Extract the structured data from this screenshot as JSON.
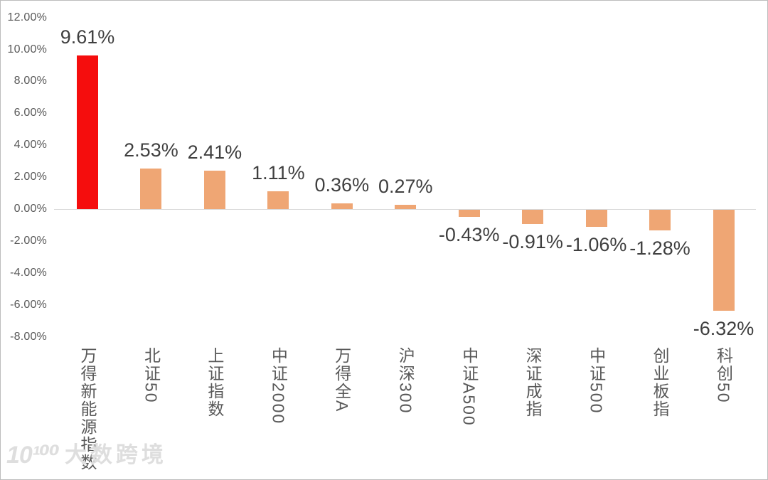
{
  "chart_data": {
    "type": "bar",
    "title": "",
    "xlabel": "",
    "ylabel": "",
    "categories": [
      "万得新能源指数",
      "北证50",
      "上证指数",
      "中证2000",
      "万得全A",
      "沪深300",
      "中证A500",
      "深证成指",
      "中证500",
      "创业板指",
      "科创50"
    ],
    "values": [
      9.61,
      2.53,
      2.41,
      1.11,
      0.36,
      0.27,
      -0.43,
      -0.91,
      -1.06,
      -1.28,
      -6.32
    ],
    "value_labels": [
      "9.61%",
      "2.53%",
      "2.41%",
      "1.11%",
      "0.36%",
      "0.27%",
      "-0.43%",
      "-0.91%",
      "-1.06%",
      "-1.28%",
      "-6.32%"
    ],
    "bar_colors": [
      "#f50d0d",
      "#efa674",
      "#efa674",
      "#efa674",
      "#efa674",
      "#efa674",
      "#efa674",
      "#efa674",
      "#efa674",
      "#efa674",
      "#efa674"
    ],
    "highlight_color": "#f50d0d",
    "default_color": "#efa674",
    "y_axis": {
      "tick_labels": [
        "12.00%",
        "10.00%",
        "8.00%",
        "6.00%",
        "4.00%",
        "2.00%",
        "0.00%",
        "-2.00%",
        "-4.00%",
        "-6.00%",
        "-8.00%"
      ],
      "tick_values": [
        12,
        10,
        8,
        6,
        4,
        2,
        0,
        -2,
        -4,
        -6,
        -8
      ],
      "ylim": [
        -8,
        12
      ],
      "grid": false,
      "zero_line_color": "#d9d9d9"
    },
    "legend": null,
    "text_colors": {
      "value_label": "#3f3f3f",
      "axis_tick_label": "#595959",
      "category_label": "#595959"
    }
  },
  "watermark": {
    "logo": "10¹⁰⁰",
    "text": "大数跨境"
  }
}
